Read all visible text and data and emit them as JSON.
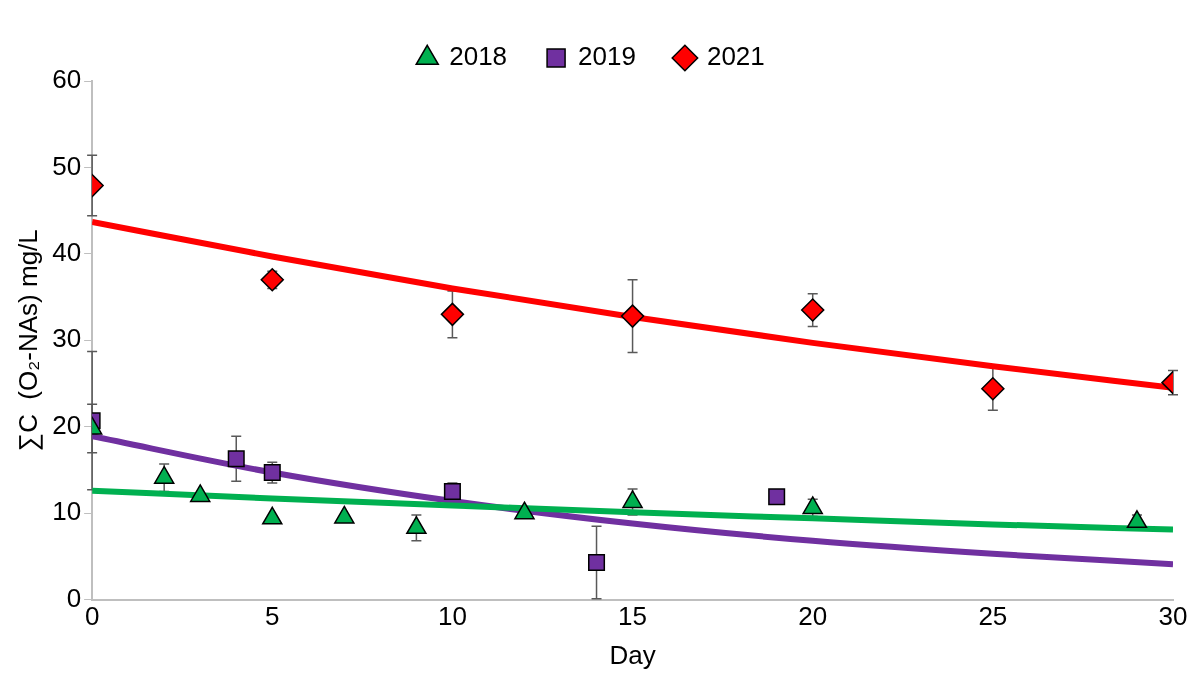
{
  "chart_data": {
    "type": "scatter",
    "xlabel": "Day",
    "ylabel": "∑C  (O₂-NAs) mg/L",
    "xlim": [
      0,
      30
    ],
    "xticks": [
      0,
      5,
      10,
      15,
      20,
      25,
      30
    ],
    "ylim": [
      0,
      60
    ],
    "yticks": [
      0,
      10,
      20,
      30,
      40,
      50,
      60
    ],
    "grid": false,
    "legend": "top",
    "series": [
      {
        "name": "2018",
        "color": "#00b050",
        "marker": "triangle",
        "x": [
          0,
          2,
          3,
          5,
          7,
          9,
          12,
          15,
          20,
          29
        ],
        "values": [
          19.8,
          14.1,
          12.0,
          9.4,
          9.5,
          8.3,
          10.0,
          11.3,
          10.6,
          9.0
        ],
        "errors": [
          2.8,
          1.6,
          null,
          null,
          null,
          1.5,
          null,
          1.5,
          1.0,
          0.8
        ]
      },
      {
        "name": "2019",
        "color": "#7030a0",
        "marker": "square",
        "x": [
          0,
          4,
          5,
          10,
          14,
          19
        ],
        "values": [
          20.7,
          16.3,
          14.7,
          12.5,
          4.3,
          11.9
        ],
        "errors": [
          8.0,
          2.6,
          1.2,
          1.0,
          4.2,
          null
        ]
      },
      {
        "name": "2021",
        "color": "#ff0000",
        "marker": "diamond",
        "x": [
          0,
          5,
          10,
          15,
          20,
          25,
          30
        ],
        "values": [
          47.9,
          37.0,
          33.0,
          32.8,
          33.5,
          24.4,
          25.1
        ],
        "errors": [
          3.5,
          1.0,
          2.7,
          4.2,
          1.9,
          2.5,
          1.4
        ]
      },
      {
        "type": "line",
        "color": "#00b050",
        "marker": "none",
        "line_style": "solid",
        "x": [
          0,
          5,
          10,
          15,
          20,
          25,
          30
        ],
        "values": [
          12.6,
          11.7,
          10.9,
          10.1,
          9.4,
          8.7,
          8.1
        ]
      },
      {
        "type": "line",
        "color": "#7030a0",
        "marker": "none",
        "line_style": "solid",
        "x": [
          0,
          5,
          10,
          15,
          20,
          25,
          30
        ],
        "values": [
          18.9,
          14.7,
          11.4,
          8.8,
          6.8,
          5.3,
          4.1
        ]
      },
      {
        "type": "line",
        "color": "#ff0000",
        "marker": "none",
        "line_style": "solid",
        "x": [
          0,
          5,
          10,
          15,
          20,
          25,
          30
        ],
        "values": [
          43.7,
          39.7,
          36.0,
          32.7,
          29.7,
          27.0,
          24.5
        ]
      }
    ]
  }
}
